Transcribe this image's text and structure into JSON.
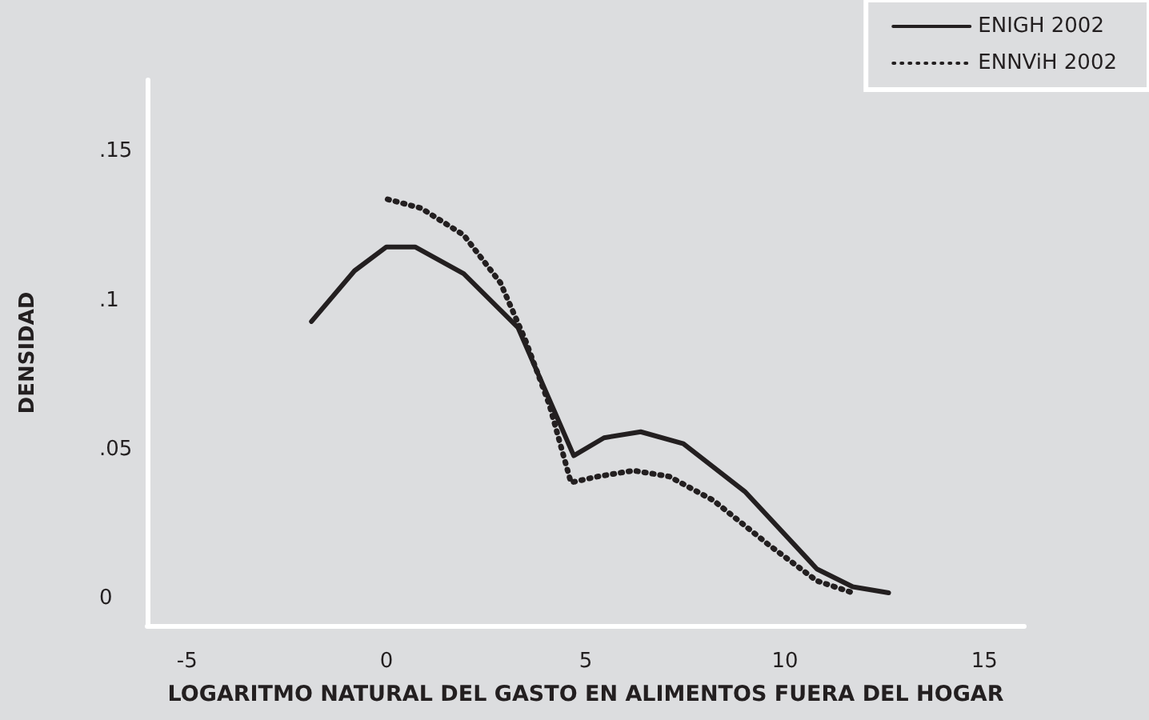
{
  "chart_data": {
    "type": "line",
    "xlabel": "LOGARITMO NATURAL DEL GASTO EN ALIMENTOS FUERA DEL HOGAR",
    "ylabel": "DENSIDAD",
    "xlim": [
      -6,
      16
    ],
    "xticks": [
      -5,
      0,
      5,
      10,
      15
    ],
    "ylim": [
      -0.009,
      0.174
    ],
    "yticks": [
      {
        "value": 0,
        "label": "0"
      },
      {
        "value": 0.05,
        "label": ".05"
      },
      {
        "value": 0.1,
        "label": ".1"
      },
      {
        "value": 0.15,
        "label": ".15"
      }
    ],
    "legend": "top right",
    "marker": "none",
    "series": [
      {
        "name": "ENIGH 2002",
        "color": "#231f20",
        "line_style": "solid",
        "x": [
          -1.88,
          -0.8,
          0,
          0.72,
          1.94,
          3.3,
          4.7,
          5.46,
          6.38,
          7.45,
          8.99,
          10.8,
          11.7,
          12.6
        ],
        "values": [
          0.093,
          0.11,
          0.118,
          0.118,
          0.109,
          0.091,
          0.048,
          0.054,
          0.056,
          0.052,
          0.036,
          0.01,
          0.004,
          0.002
        ]
      },
      {
        "name": "ENNViH 2002",
        "color": "#231f20",
        "line_style": "dotted",
        "x": [
          0.03,
          0.87,
          1.94,
          2.86,
          3.48,
          4.09,
          4.63,
          5.3,
          6.2,
          7.1,
          8.2,
          9.6,
          10.8,
          11.7
        ],
        "values": [
          0.134,
          0.131,
          0.122,
          0.106,
          0.087,
          0.065,
          0.039,
          0.041,
          0.043,
          0.041,
          0.033,
          0.018,
          0.006,
          0.002
        ]
      }
    ]
  }
}
